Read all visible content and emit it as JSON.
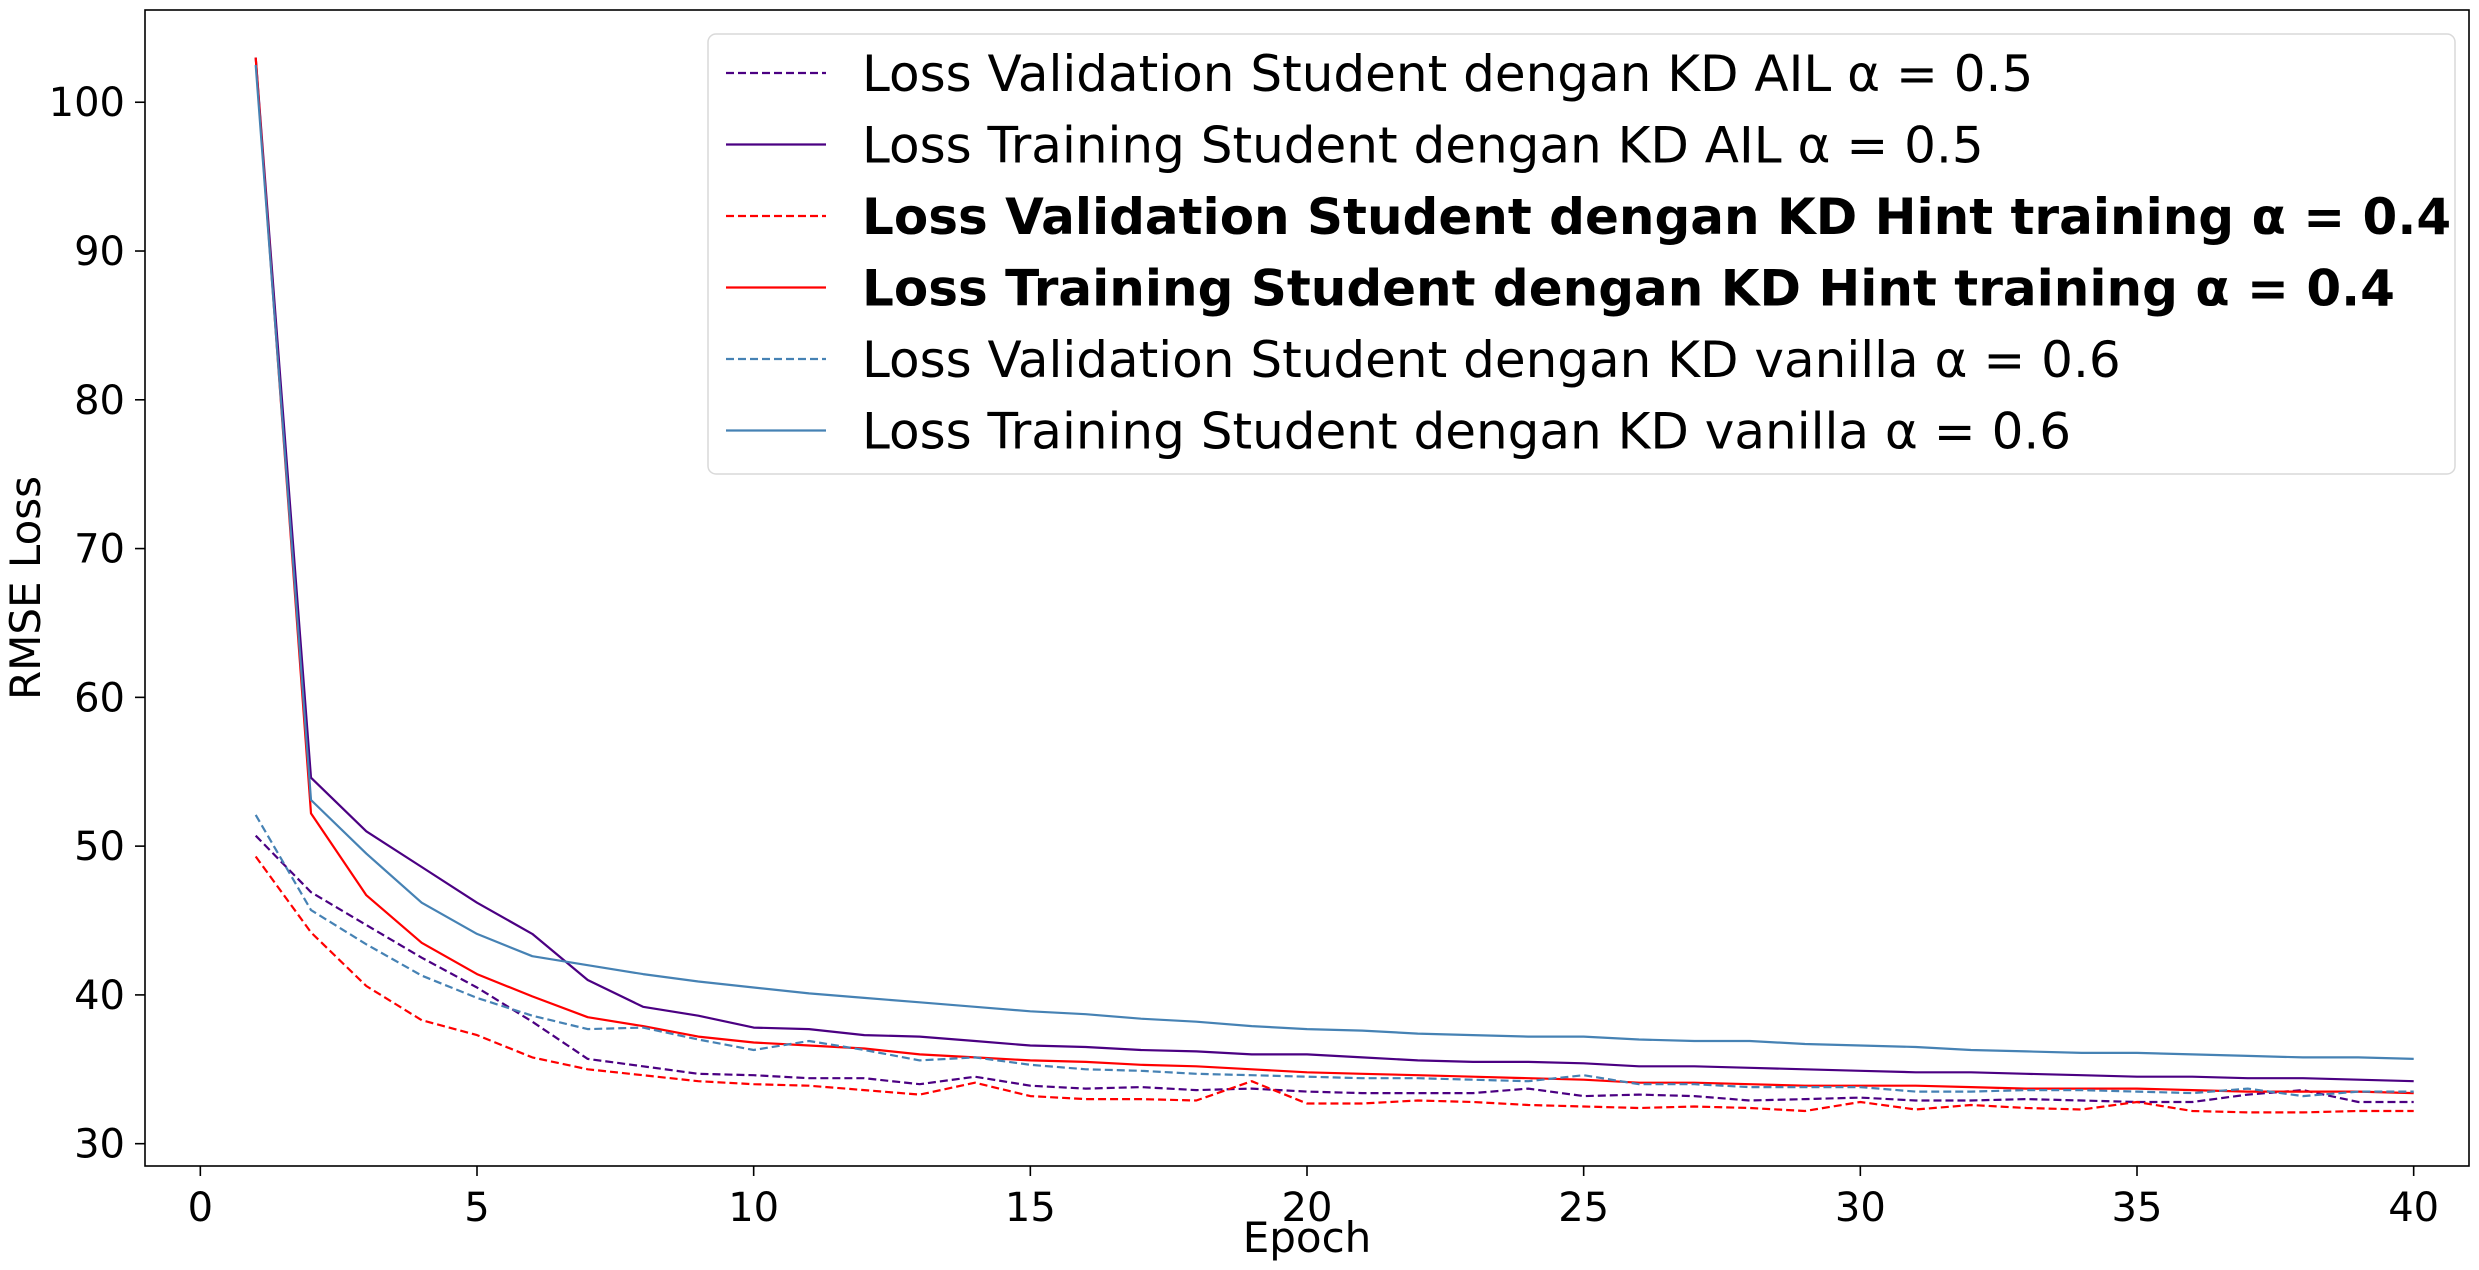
{
  "chart_data": {
    "type": "line",
    "title": "",
    "xlabel": "Epoch",
    "ylabel": "RMSE Loss",
    "xlim": [
      -1,
      41
    ],
    "ylim": [
      28.5,
      106.2
    ],
    "xticks": [
      0,
      5,
      10,
      15,
      20,
      25,
      30,
      35,
      40
    ],
    "yticks": [
      30,
      40,
      50,
      60,
      70,
      80,
      90,
      100
    ],
    "grid": false,
    "legend_position": "top-right",
    "x": [
      1,
      2,
      3,
      4,
      5,
      6,
      7,
      8,
      9,
      10,
      11,
      12,
      13,
      14,
      15,
      16,
      17,
      18,
      19,
      20,
      21,
      22,
      23,
      24,
      25,
      26,
      27,
      28,
      29,
      30,
      31,
      32,
      33,
      34,
      35,
      36,
      37,
      38,
      39,
      40
    ],
    "series": [
      {
        "name": "Loss Validation Student dengan KD AIL α = 0.5",
        "color": "#4b0082",
        "style": "dashed",
        "bold": false,
        "values": [
          50.7,
          46.9,
          44.7,
          42.5,
          40.5,
          38.2,
          35.7,
          35.2,
          34.7,
          34.6,
          34.4,
          34.4,
          34.0,
          34.5,
          33.9,
          33.7,
          33.8,
          33.6,
          33.7,
          33.5,
          33.4,
          33.4,
          33.4,
          33.7,
          33.2,
          33.3,
          33.2,
          32.9,
          33.0,
          33.1,
          32.9,
          32.9,
          33.0,
          32.9,
          32.8,
          32.8,
          33.3,
          33.6,
          32.8,
          32.8
        ]
      },
      {
        "name": "Loss Training Student dengan KD AIL α = 0.5",
        "color": "#4b0082",
        "style": "solid",
        "bold": false,
        "values": [
          103.0,
          54.6,
          51.0,
          48.6,
          46.2,
          44.1,
          41.0,
          39.2,
          38.6,
          37.8,
          37.7,
          37.3,
          37.2,
          36.9,
          36.6,
          36.5,
          36.3,
          36.2,
          36.0,
          36.0,
          35.8,
          35.6,
          35.5,
          35.5,
          35.4,
          35.2,
          35.2,
          35.1,
          35.0,
          34.9,
          34.8,
          34.8,
          34.7,
          34.6,
          34.5,
          34.5,
          34.4,
          34.4,
          34.3,
          34.2
        ]
      },
      {
        "name": "Loss Validation Student dengan KD Hint training α = 0.4",
        "color": "#ff0000",
        "style": "dashed",
        "bold": true,
        "values": [
          49.3,
          44.2,
          40.6,
          38.3,
          37.3,
          35.8,
          35.0,
          34.6,
          34.2,
          34.0,
          33.9,
          33.6,
          33.3,
          34.1,
          33.2,
          33.0,
          33.0,
          32.9,
          34.2,
          32.7,
          32.7,
          32.9,
          32.8,
          32.6,
          32.5,
          32.4,
          32.5,
          32.4,
          32.2,
          32.8,
          32.3,
          32.6,
          32.4,
          32.3,
          32.8,
          32.2,
          32.1,
          32.1,
          32.2,
          32.2
        ]
      },
      {
        "name": "Loss Training Student dengan KD Hint training α = 0.4",
        "color": "#ff0000",
        "style": "solid",
        "bold": true,
        "values": [
          103.0,
          52.2,
          46.7,
          43.5,
          41.4,
          39.9,
          38.5,
          37.9,
          37.2,
          36.8,
          36.6,
          36.4,
          36.0,
          35.8,
          35.6,
          35.5,
          35.3,
          35.2,
          35.0,
          34.8,
          34.7,
          34.6,
          34.5,
          34.4,
          34.3,
          34.1,
          34.1,
          34.0,
          33.9,
          33.9,
          33.9,
          33.8,
          33.7,
          33.7,
          33.7,
          33.6,
          33.5,
          33.5,
          33.5,
          33.4
        ]
      },
      {
        "name": "Loss Validation Student dengan KD vanilla α = 0.6",
        "color": "#4682b4",
        "style": "dashed",
        "bold": false,
        "values": [
          52.1,
          45.7,
          43.4,
          41.3,
          39.8,
          38.6,
          37.7,
          37.8,
          37.0,
          36.3,
          36.9,
          36.3,
          35.6,
          35.8,
          35.3,
          35.0,
          34.9,
          34.7,
          34.6,
          34.5,
          34.4,
          34.4,
          34.3,
          34.2,
          34.6,
          34.0,
          34.0,
          33.8,
          33.8,
          33.8,
          33.5,
          33.5,
          33.6,
          33.6,
          33.5,
          33.4,
          33.7,
          33.2,
          33.5,
          33.5
        ]
      },
      {
        "name": "Loss Training Student dengan KD vanilla α = 0.6",
        "color": "#4682b4",
        "style": "solid",
        "bold": false,
        "values": [
          102.5,
          53.1,
          49.5,
          46.2,
          44.1,
          42.6,
          42.0,
          41.4,
          40.9,
          40.5,
          40.1,
          39.8,
          39.5,
          39.2,
          38.9,
          38.7,
          38.4,
          38.2,
          37.9,
          37.7,
          37.6,
          37.4,
          37.3,
          37.2,
          37.2,
          37.0,
          36.9,
          36.9,
          36.7,
          36.6,
          36.5,
          36.3,
          36.2,
          36.1,
          36.1,
          36.0,
          35.9,
          35.8,
          35.8,
          35.7
        ]
      }
    ]
  }
}
